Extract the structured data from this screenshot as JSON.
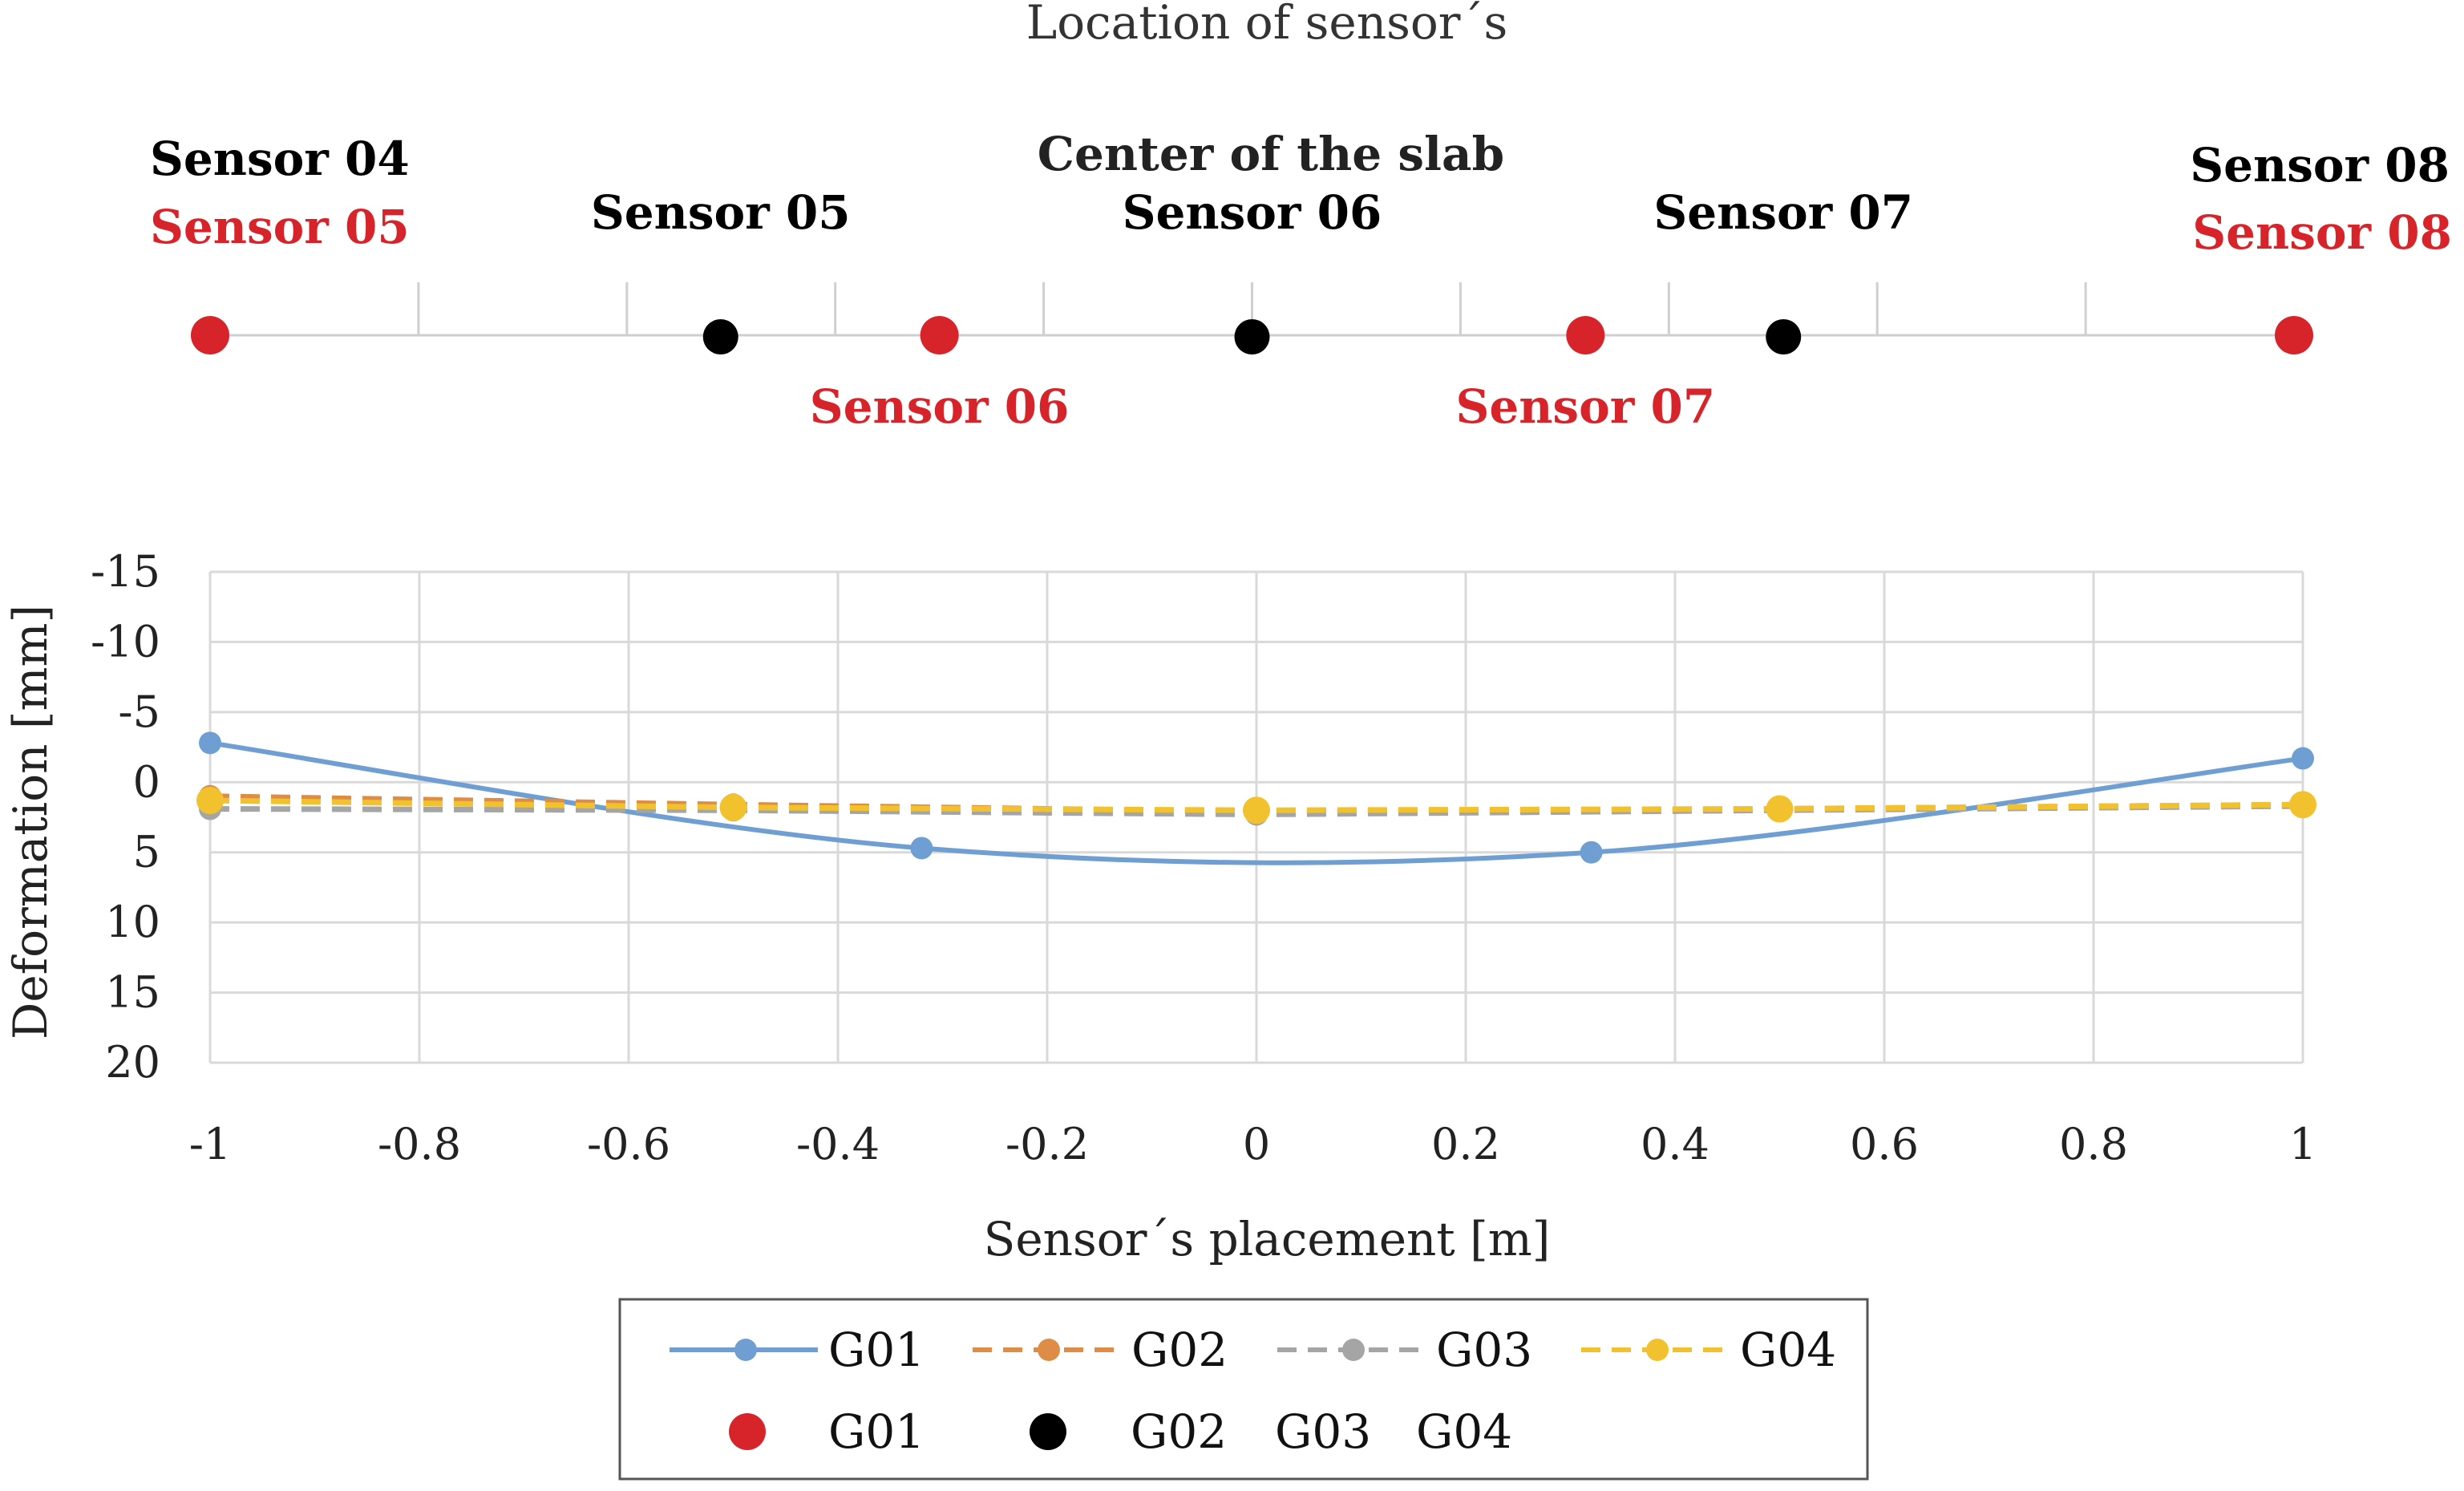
{
  "top_diagram": {
    "title": "Location of sensor´s",
    "center_label": "Center of the slab",
    "x_range": [
      -1,
      1
    ],
    "tick_values": [
      -0.8,
      -0.6,
      -0.4,
      -0.2,
      0,
      0.2,
      0.4,
      0.6,
      0.8
    ],
    "black_color": "#000000",
    "red_color": "#d7242a",
    "black_sensors": [
      {
        "label": "Sensor 04",
        "x": -1,
        "label_position": "above",
        "has_marker": false
      },
      {
        "label": "Sensor 05",
        "x": -0.51,
        "label_position": "above",
        "has_marker": true
      },
      {
        "label": "Sensor 06",
        "x": 0,
        "label_position": "above",
        "has_marker": true
      },
      {
        "label": "Sensor 07",
        "x": 0.51,
        "label_position": "above",
        "has_marker": true
      },
      {
        "label": "Sensor 08",
        "x": 1,
        "label_position": "above",
        "has_marker": false
      }
    ],
    "red_sensors": [
      {
        "label": "Sensor 05",
        "x": -1,
        "label_position": "above"
      },
      {
        "label": "Sensor 06",
        "x": -0.3,
        "label_position": "below"
      },
      {
        "label": "Sensor 07",
        "x": 0.32,
        "label_position": "below"
      },
      {
        "label": "Sensor 08",
        "x": 1,
        "label_position": "above"
      }
    ]
  },
  "chart_data": {
    "type": "line",
    "title": "",
    "xlabel": "Sensor´s placement [m]",
    "ylabel": "Deformation [mm]",
    "xlim": [
      -1,
      1
    ],
    "ylim": [
      -15,
      20
    ],
    "y_inverted": true,
    "x_ticks": [
      -1,
      -0.8,
      -0.6,
      -0.4,
      -0.2,
      0,
      0.2,
      0.4,
      0.6,
      0.8,
      1
    ],
    "x_tick_labels": [
      "-1",
      "-0.8",
      "-0.6",
      "-0.4",
      "-0.2",
      "0",
      "0.2",
      "0.4",
      "0.6",
      "0.8",
      "1"
    ],
    "y_ticks": [
      -15,
      -10,
      -5,
      0,
      5,
      10,
      15,
      20
    ],
    "y_tick_labels": [
      "-15",
      "-10",
      "-5",
      "0",
      "5",
      "10",
      "15",
      "20"
    ],
    "grid": true,
    "legend": "bottom",
    "series": [
      {
        "name": "G01",
        "color": "#6f9fd2",
        "style": "solid",
        "smooth": true,
        "x": [
          -1,
          -0.32,
          0.32,
          1
        ],
        "y": [
          -2.8,
          4.7,
          5.0,
          -1.7
        ]
      },
      {
        "name": "G02",
        "color": "#dd8d46",
        "style": "dashed",
        "x": [
          -1,
          -0.5,
          0,
          0.5,
          1
        ],
        "y": [
          1.0,
          1.6,
          2.1,
          1.9,
          1.6
        ]
      },
      {
        "name": "G03",
        "color": "#a5a5a5",
        "style": "dashed",
        "x": [
          -1,
          -0.5,
          0,
          0.5,
          1
        ],
        "y": [
          1.9,
          2.0,
          2.3,
          2.0,
          1.7
        ]
      },
      {
        "name": "G04",
        "color": "#f2c12e",
        "style": "dashed",
        "x": [
          -1,
          -0.5,
          0,
          0.5,
          1
        ],
        "y": [
          1.3,
          1.8,
          2.0,
          1.9,
          1.6
        ]
      }
    ],
    "marker_legend": [
      {
        "label": "G01",
        "color": "#d7242a"
      },
      {
        "label": "G02",
        "color": "#000000"
      },
      {
        "label": "G03",
        "color": ""
      },
      {
        "label": "G04",
        "color": ""
      }
    ]
  }
}
